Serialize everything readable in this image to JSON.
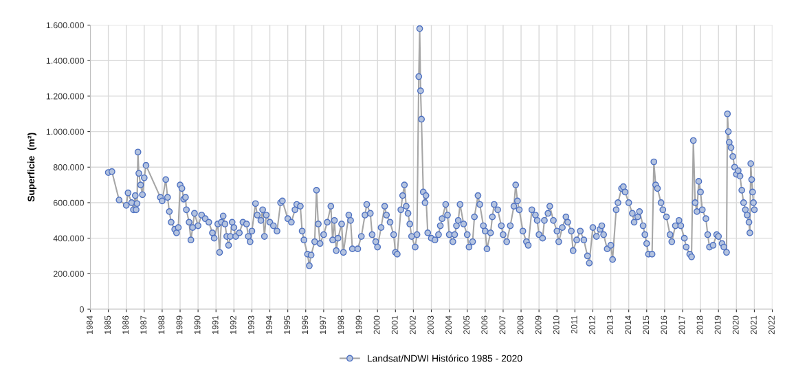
{
  "chart_data": {
    "type": "line",
    "ylabel": "Superficie  (m²)",
    "xlim": [
      1984,
      2022
    ],
    "xticks": [
      1984,
      1985,
      1986,
      1987,
      1988,
      1989,
      1990,
      1991,
      1992,
      1993,
      1994,
      1995,
      1996,
      1997,
      1998,
      1999,
      2000,
      2001,
      2002,
      2003,
      2004,
      2005,
      2006,
      2007,
      2008,
      2009,
      2010,
      2011,
      2012,
      2013,
      2014,
      2015,
      2016,
      2017,
      2018,
      2019,
      2020,
      2021,
      2022
    ],
    "ylim": [
      0,
      1600000
    ],
    "yticks": [
      {
        "value": 0,
        "label": "0"
      },
      {
        "value": 200000,
        "label": "200.000"
      },
      {
        "value": 400000,
        "label": "400.000"
      },
      {
        "value": 600000,
        "label": "600.000"
      },
      {
        "value": 800000,
        "label": "800.000"
      },
      {
        "value": 1000000,
        "label": "1.000.000"
      },
      {
        "value": 1200000,
        "label": "1.200.000"
      },
      {
        "value": 1400000,
        "label": "1.400.000"
      },
      {
        "value": 1600000,
        "label": "1.600.000"
      }
    ],
    "grid": true,
    "legend": "bottom",
    "marker": "circle",
    "line_style": "solid",
    "series": [
      {
        "name": "Landsat/NDWI Histórico 1985 - 2020",
        "color": "#a6a6a6",
        "x": [
          1985.0,
          1985.2,
          1985.6,
          1986.0,
          1986.1,
          1986.3,
          1986.4,
          1986.5,
          1986.55,
          1986.6,
          1986.65,
          1986.7,
          1986.8,
          1986.9,
          1987.0,
          1987.1,
          1987.9,
          1988.0,
          1988.2,
          1988.3,
          1988.4,
          1988.5,
          1988.7,
          1988.8,
          1988.9,
          1989.0,
          1989.1,
          1989.2,
          1989.3,
          1989.35,
          1989.5,
          1989.6,
          1989.7,
          1989.8,
          1990.0,
          1990.2,
          1990.4,
          1990.6,
          1990.8,
          1990.9,
          1991.1,
          1991.2,
          1991.3,
          1991.4,
          1991.5,
          1991.6,
          1991.7,
          1991.8,
          1991.9,
          1992.0,
          1992.1,
          1992.3,
          1992.5,
          1992.7,
          1992.8,
          1992.9,
          1993.0,
          1993.2,
          1993.3,
          1993.5,
          1993.6,
          1993.7,
          1993.8,
          1994.0,
          1994.2,
          1994.4,
          1994.6,
          1994.7,
          1995.0,
          1995.2,
          1995.4,
          1995.5,
          1995.7,
          1995.8,
          1995.9,
          1996.1,
          1996.2,
          1996.3,
          1996.5,
          1996.6,
          1996.7,
          1996.8,
          1997.0,
          1997.2,
          1997.4,
          1997.5,
          1997.6,
          1997.7,
          1997.8,
          1998.0,
          1998.1,
          1998.4,
          1998.5,
          1998.6,
          1998.9,
          1999.1,
          1999.3,
          1999.4,
          1999.6,
          1999.7,
          1999.9,
          2000.0,
          2000.2,
          2000.4,
          2000.5,
          2000.7,
          2000.9,
          2001.0,
          2001.1,
          2001.3,
          2001.4,
          2001.5,
          2001.6,
          2001.7,
          2001.8,
          2001.9,
          2002.1,
          2002.2,
          2002.3,
          2002.35,
          2002.4,
          2002.45,
          2002.55,
          2002.65,
          2002.7,
          2002.8,
          2003.0,
          2003.2,
          2003.4,
          2003.5,
          2003.6,
          2003.8,
          2003.9,
          2004.0,
          2004.2,
          2004.3,
          2004.4,
          2004.5,
          2004.6,
          2004.8,
          2005.0,
          2005.1,
          2005.3,
          2005.4,
          2005.6,
          2005.7,
          2005.9,
          2006.0,
          2006.1,
          2006.3,
          2006.4,
          2006.5,
          2006.7,
          2006.9,
          2007.0,
          2007.2,
          2007.4,
          2007.6,
          2007.7,
          2007.8,
          2007.9,
          2008.1,
          2008.3,
          2008.4,
          2008.6,
          2008.8,
          2008.9,
          2009.0,
          2009.2,
          2009.3,
          2009.5,
          2009.6,
          2009.8,
          2010.0,
          2010.1,
          2010.3,
          2010.5,
          2010.6,
          2010.8,
          2010.9,
          2011.1,
          2011.3,
          2011.5,
          2011.7,
          2011.8,
          2012.0,
          2012.2,
          2012.4,
          2012.5,
          2012.6,
          2012.8,
          2013.0,
          2013.1,
          2013.3,
          2013.4,
          2013.6,
          2013.7,
          2013.8,
          2014.0,
          2014.2,
          2014.3,
          2014.5,
          2014.6,
          2014.8,
          2014.9,
          2015.0,
          2015.1,
          2015.3,
          2015.4,
          2015.5,
          2015.6,
          2015.8,
          2015.9,
          2016.1,
          2016.3,
          2016.4,
          2016.6,
          2016.8,
          2016.9,
          2017.1,
          2017.2,
          2017.4,
          2017.5,
          2017.6,
          2017.7,
          2017.8,
          2017.9,
          2018.0,
          2018.1,
          2018.3,
          2018.4,
          2018.5,
          2018.7,
          2018.9,
          2019.0,
          2019.2,
          2019.3,
          2019.45,
          2019.5,
          2019.55,
          2019.6,
          2019.7,
          2019.8,
          2019.9,
          2020.0,
          2020.1,
          2020.2,
          2020.3,
          2020.4,
          2020.5,
          2020.6,
          2020.7,
          2020.75,
          2020.8,
          2020.85,
          2020.9,
          2020.95,
          2021.0
        ],
        "values": [
          770000,
          775000,
          615000,
          585000,
          655000,
          600000,
          560000,
          640000,
          560000,
          595000,
          885000,
          765000,
          700000,
          645000,
          740000,
          810000,
          630000,
          610000,
          730000,
          630000,
          550000,
          490000,
          450000,
          430000,
          460000,
          700000,
          680000,
          620000,
          630000,
          560000,
          490000,
          390000,
          460000,
          540000,
          470000,
          530000,
          510000,
          490000,
          430000,
          400000,
          480000,
          320000,
          490000,
          525000,
          480000,
          410000,
          360000,
          410000,
          490000,
          460000,
          410000,
          430000,
          490000,
          480000,
          410000,
          380000,
          440000,
          595000,
          530000,
          500000,
          560000,
          410000,
          530000,
          490000,
          470000,
          440000,
          600000,
          610000,
          510000,
          490000,
          560000,
          590000,
          580000,
          440000,
          390000,
          310000,
          245000,
          305000,
          380000,
          670000,
          480000,
          370000,
          420000,
          490000,
          580000,
          390000,
          500000,
          330000,
          400000,
          480000,
          320000,
          530000,
          500000,
          340000,
          340000,
          410000,
          530000,
          590000,
          540000,
          420000,
          380000,
          350000,
          460000,
          580000,
          530000,
          490000,
          420000,
          320000,
          310000,
          560000,
          640000,
          700000,
          580000,
          540000,
          480000,
          410000,
          350000,
          420000,
          1310000,
          1580000,
          1230000,
          1070000,
          660000,
          600000,
          640000,
          430000,
          400000,
          390000,
          420000,
          470000,
          510000,
          590000,
          530000,
          420000,
          380000,
          420000,
          470000,
          500000,
          590000,
          480000,
          420000,
          350000,
          380000,
          520000,
          640000,
          590000,
          470000,
          440000,
          340000,
          430000,
          520000,
          590000,
          560000,
          470000,
          420000,
          380000,
          470000,
          580000,
          700000,
          610000,
          560000,
          440000,
          380000,
          360000,
          560000,
          530000,
          500000,
          420000,
          400000,
          500000,
          540000,
          580000,
          500000,
          440000,
          380000,
          460000,
          520000,
          490000,
          440000,
          330000,
          390000,
          440000,
          390000,
          300000,
          260000,
          460000,
          410000,
          450000,
          470000,
          420000,
          340000,
          360000,
          280000,
          560000,
          600000,
          680000,
          690000,
          660000,
          600000,
          540000,
          490000,
          520000,
          550000,
          470000,
          420000,
          370000,
          310000,
          310000,
          830000,
          700000,
          680000,
          600000,
          560000,
          520000,
          420000,
          380000,
          470000,
          500000,
          470000,
          400000,
          350000,
          310000,
          295000,
          950000,
          600000,
          550000,
          720000,
          660000,
          560000,
          510000,
          420000,
          350000,
          360000,
          420000,
          410000,
          370000,
          350000,
          320000,
          1100000,
          1000000,
          940000,
          910000,
          860000,
          800000,
          760000,
          780000,
          750000,
          670000,
          600000,
          560000,
          530000,
          490000,
          430000,
          820000,
          730000,
          660000,
          600000,
          560000
        ]
      }
    ]
  }
}
